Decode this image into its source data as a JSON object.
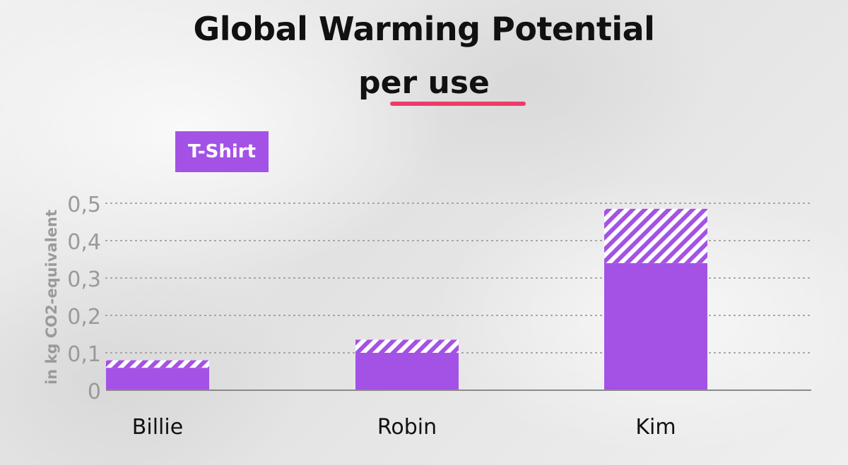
{
  "colors": {
    "bar": "#a452e6",
    "accent_underline": "#f03a6a",
    "axis_text": "#9a9a9a",
    "label_text": "#111111"
  },
  "chart_data": {
    "type": "bar",
    "stacked": true,
    "title": "Global Warming Potential",
    "subtitle": "per use",
    "ylabel": "in kg CO2-equivalent",
    "xlabel": "",
    "legend": {
      "label": "T-Shirt",
      "placement": "top-left"
    },
    "categories": [
      "Billie",
      "Robin",
      "Kim"
    ],
    "series": [
      {
        "style": "solid",
        "values": [
          0.06,
          0.1,
          0.34
        ]
      },
      {
        "style": "hatched",
        "values": [
          0.02,
          0.035,
          0.145
        ]
      }
    ],
    "ylim": [
      0,
      0.5
    ],
    "yticks": [
      0,
      0.1,
      0.2,
      0.3,
      0.4,
      0.5
    ],
    "ytick_labels": [
      "0",
      "0,1",
      "0,2",
      "0,3",
      "0,4",
      "0,5"
    ],
    "grid": true
  }
}
